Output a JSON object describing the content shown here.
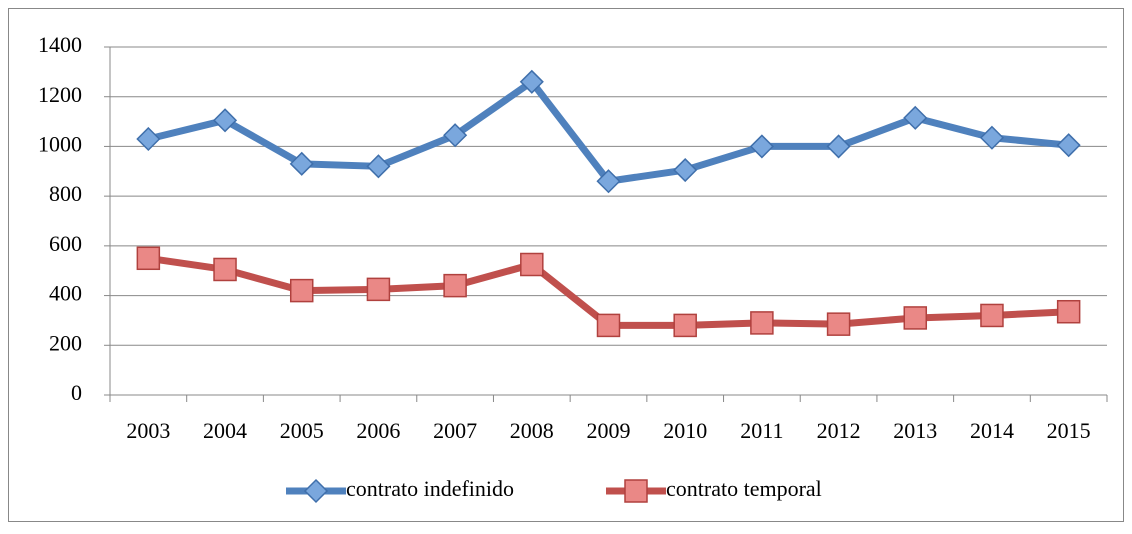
{
  "chart_data": {
    "type": "line",
    "categories": [
      "2003",
      "2004",
      "2005",
      "2006",
      "2007",
      "2008",
      "2009",
      "2010",
      "2011",
      "2012",
      "2013",
      "2014",
      "2015"
    ],
    "series": [
      {
        "name": "contrato indefinido",
        "color": "#4f81bd",
        "marker": "diamond",
        "values": [
          1030,
          1105,
          930,
          920,
          1045,
          1260,
          860,
          905,
          1000,
          1000,
          1115,
          1035,
          1005
        ]
      },
      {
        "name": "contrato temporal",
        "color": "#c0504d",
        "marker": "square",
        "values": [
          550,
          505,
          420,
          425,
          440,
          525,
          280,
          280,
          290,
          285,
          310,
          320,
          335
        ]
      }
    ],
    "ylim": [
      0,
      1400
    ],
    "yticks": [
      0,
      200,
      400,
      600,
      800,
      1000,
      1200,
      1400
    ],
    "grid": true,
    "legend": "bottom"
  }
}
